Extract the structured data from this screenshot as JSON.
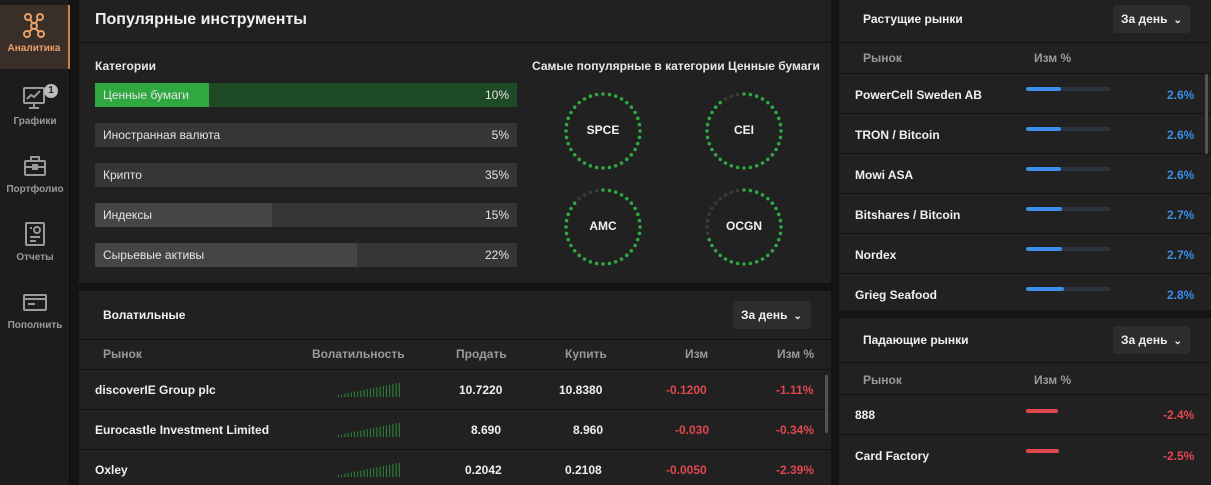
{
  "sidebar": {
    "items": [
      {
        "label": "Аналитика",
        "icon": "network-icon",
        "active": true
      },
      {
        "label": "Графики",
        "icon": "chart-monitor-icon",
        "badge": "1"
      },
      {
        "label": "Портфолио",
        "icon": "briefcase-icon"
      },
      {
        "label": "Отчеты",
        "icon": "report-icon"
      },
      {
        "label": "Пополнить",
        "icon": "wallet-icon"
      }
    ]
  },
  "popular": {
    "title": "Популярные инструменты",
    "categories_title": "Категории",
    "categories": [
      {
        "name": "Ценные бумаги",
        "pct": "10%",
        "fill": 0.27,
        "active": true
      },
      {
        "name": "Иностранная валюта",
        "pct": "5%",
        "fill": 0.0
      },
      {
        "name": "Крипто",
        "pct": "35%",
        "fill": 0.0
      },
      {
        "name": "Индексы",
        "pct": "15%",
        "fill": 0.42
      },
      {
        "name": "Сырьевые активы",
        "pct": "22%",
        "fill": 0.62
      }
    ],
    "top_title": "Самые популярные в категории Ценные бумаги",
    "tickers": [
      {
        "symbol": "SPCE",
        "level": 1.0
      },
      {
        "symbol": "CEI",
        "level": 0.92
      },
      {
        "symbol": "AMC",
        "level": 0.88
      },
      {
        "symbol": "OCGN",
        "level": 0.72
      }
    ],
    "colors": {
      "accent": "#2fa83f",
      "ring_off": "#3a3a3a"
    }
  },
  "volatile": {
    "title": "Волатильные",
    "period": "За день",
    "headers": [
      "Рынок",
      "Волатильность",
      "Продать",
      "Купить",
      "Изм",
      "Изм %"
    ],
    "rows": [
      {
        "market": "discoverIE Group plc",
        "sell": "10.7220",
        "buy": "10.8380",
        "chg": "-0.1200",
        "chg_pct": "-1.11%"
      },
      {
        "market": "Eurocastle Investment Limited",
        "sell": "8.690",
        "buy": "8.960",
        "chg": "-0.030",
        "chg_pct": "-0.34%"
      },
      {
        "market": "Oxley",
        "sell": "0.2042",
        "buy": "0.2108",
        "chg": "-0.0050",
        "chg_pct": "-2.39%"
      }
    ]
  },
  "rising": {
    "title": "Растущие рынки",
    "period": "За день",
    "headers": [
      "Рынок",
      "Изм %"
    ],
    "rows": [
      {
        "market": "PowerCell Sweden AB",
        "chg_pct": "2.6%",
        "level": 0.42
      },
      {
        "market": "TRON / Bitcoin",
        "chg_pct": "2.6%",
        "level": 0.42
      },
      {
        "market": "Mowi ASA",
        "chg_pct": "2.6%",
        "level": 0.42
      },
      {
        "market": "Bitshares / Bitcoin",
        "chg_pct": "2.7%",
        "level": 0.43
      },
      {
        "market": "Nordex",
        "chg_pct": "2.7%",
        "level": 0.43
      },
      {
        "market": "Grieg Seafood",
        "chg_pct": "2.8%",
        "level": 0.45
      }
    ]
  },
  "falling": {
    "title": "Падающие рынки",
    "period": "За день",
    "headers": [
      "Рынок",
      "Изм %"
    ],
    "rows": [
      {
        "market": "888",
        "chg_pct": "-2.4%",
        "level": 0.38
      },
      {
        "market": "Card Factory",
        "chg_pct": "-2.5%",
        "level": 0.39
      }
    ]
  }
}
